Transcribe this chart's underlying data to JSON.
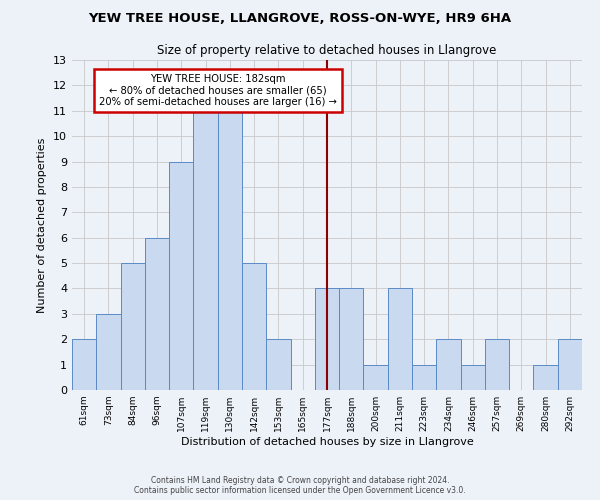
{
  "title": "YEW TREE HOUSE, LLANGROVE, ROSS-ON-WYE, HR9 6HA",
  "subtitle": "Size of property relative to detached houses in Llangrove",
  "xlabel": "Distribution of detached houses by size in Llangrove",
  "ylabel": "Number of detached properties",
  "bin_labels": [
    "61sqm",
    "73sqm",
    "84sqm",
    "96sqm",
    "107sqm",
    "119sqm",
    "130sqm",
    "142sqm",
    "153sqm",
    "165sqm",
    "177sqm",
    "188sqm",
    "200sqm",
    "211sqm",
    "223sqm",
    "234sqm",
    "246sqm",
    "257sqm",
    "269sqm",
    "280sqm",
    "292sqm"
  ],
  "bar_heights": [
    2,
    3,
    5,
    6,
    9,
    11,
    11,
    5,
    2,
    0,
    4,
    4,
    1,
    4,
    1,
    2,
    1,
    2,
    0,
    1,
    2
  ],
  "bar_color": "#c9d9f0",
  "bar_edge_color": "#5a8ac6",
  "red_line_index": 10,
  "annotation_title": "YEW TREE HOUSE: 182sqm",
  "annotation_line1": "← 80% of detached houses are smaller (65)",
  "annotation_line2": "20% of semi-detached houses are larger (16) →",
  "annotation_box_color": "#ffffff",
  "annotation_box_edge_color": "#cc0000",
  "ylim": [
    0,
    13
  ],
  "yticks": [
    0,
    1,
    2,
    3,
    4,
    5,
    6,
    7,
    8,
    9,
    10,
    11,
    12,
    13
  ],
  "grid_color": "#c8c8c8",
  "background_color": "#edf2f9",
  "footer_line1": "Contains HM Land Registry data © Crown copyright and database right 2024.",
  "footer_line2": "Contains public sector information licensed under the Open Government Licence v3.0."
}
